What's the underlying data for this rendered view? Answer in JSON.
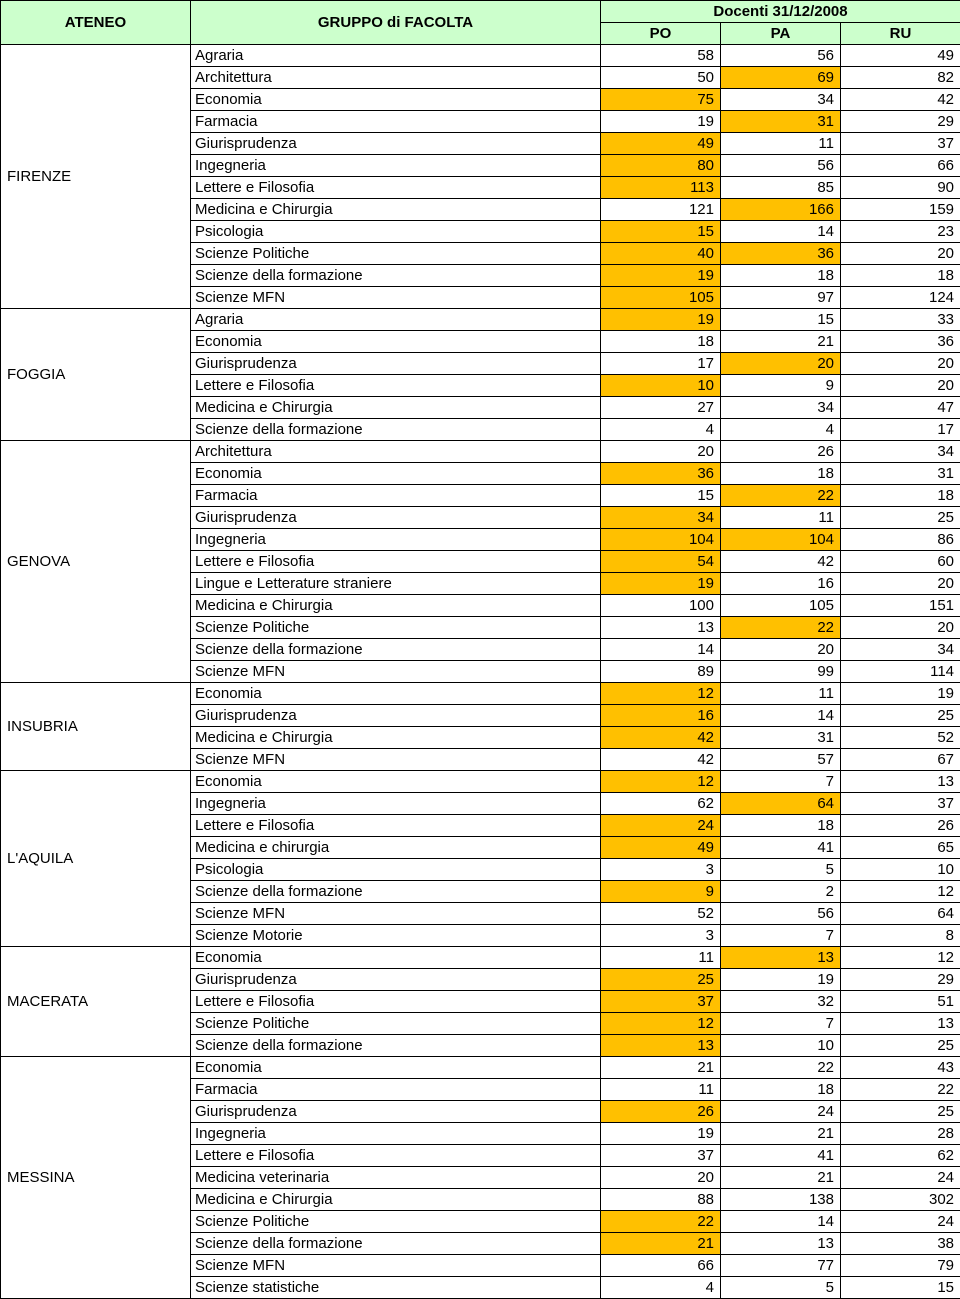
{
  "colors": {
    "header_bg": "#ccffcc",
    "highlight_bg": "#ffc000",
    "border": "#000000",
    "text": "#000000"
  },
  "header": {
    "ateneo": "ATENEO",
    "gruppo": "GRUPPO di FACOLTA",
    "docenti": "Docenti 31/12/2008",
    "po": "PO",
    "pa": "PA",
    "ru": "RU"
  },
  "groups": [
    {
      "ateneo": "FIRENZE",
      "rows": [
        {
          "fac": "Agraria",
          "po": 58,
          "pa": 56,
          "ru": 49,
          "hl": [
            false,
            false,
            false
          ]
        },
        {
          "fac": "Architettura",
          "po": 50,
          "pa": 69,
          "ru": 82,
          "hl": [
            false,
            true,
            false
          ]
        },
        {
          "fac": "Economia",
          "po": 75,
          "pa": 34,
          "ru": 42,
          "hl": [
            true,
            false,
            false
          ]
        },
        {
          "fac": "Farmacia",
          "po": 19,
          "pa": 31,
          "ru": 29,
          "hl": [
            false,
            true,
            false
          ]
        },
        {
          "fac": "Giurisprudenza",
          "po": 49,
          "pa": 11,
          "ru": 37,
          "hl": [
            true,
            false,
            false
          ]
        },
        {
          "fac": "Ingegneria",
          "po": 80,
          "pa": 56,
          "ru": 66,
          "hl": [
            true,
            false,
            false
          ]
        },
        {
          "fac": "Lettere e Filosofia",
          "po": 113,
          "pa": 85,
          "ru": 90,
          "hl": [
            true,
            false,
            false
          ]
        },
        {
          "fac": "Medicina e Chirurgia",
          "po": 121,
          "pa": 166,
          "ru": 159,
          "hl": [
            false,
            true,
            false
          ]
        },
        {
          "fac": "Psicologia",
          "po": 15,
          "pa": 14,
          "ru": 23,
          "hl": [
            true,
            false,
            false
          ]
        },
        {
          "fac": "Scienze Politiche",
          "po": 40,
          "pa": 36,
          "ru": 20,
          "hl": [
            true,
            true,
            false
          ]
        },
        {
          "fac": "Scienze della formazione",
          "po": 19,
          "pa": 18,
          "ru": 18,
          "hl": [
            true,
            false,
            false
          ]
        },
        {
          "fac": "Scienze MFN",
          "po": 105,
          "pa": 97,
          "ru": 124,
          "hl": [
            true,
            false,
            false
          ]
        }
      ]
    },
    {
      "ateneo": "FOGGIA",
      "rows": [
        {
          "fac": "Agraria",
          "po": 19,
          "pa": 15,
          "ru": 33,
          "hl": [
            true,
            false,
            false
          ]
        },
        {
          "fac": "Economia",
          "po": 18,
          "pa": 21,
          "ru": 36,
          "hl": [
            false,
            false,
            false
          ]
        },
        {
          "fac": "Giurisprudenza",
          "po": 17,
          "pa": 20,
          "ru": 20,
          "hl": [
            false,
            true,
            false
          ]
        },
        {
          "fac": "Lettere e Filosofia",
          "po": 10,
          "pa": 9,
          "ru": 20,
          "hl": [
            true,
            false,
            false
          ]
        },
        {
          "fac": "Medicina e Chirurgia",
          "po": 27,
          "pa": 34,
          "ru": 47,
          "hl": [
            false,
            false,
            false
          ]
        },
        {
          "fac": "Scienze della formazione",
          "po": 4,
          "pa": 4,
          "ru": 17,
          "hl": [
            false,
            false,
            false
          ]
        }
      ]
    },
    {
      "ateneo": "GENOVA",
      "rows": [
        {
          "fac": "Architettura",
          "po": 20,
          "pa": 26,
          "ru": 34,
          "hl": [
            false,
            false,
            false
          ]
        },
        {
          "fac": "Economia",
          "po": 36,
          "pa": 18,
          "ru": 31,
          "hl": [
            true,
            false,
            false
          ]
        },
        {
          "fac": "Farmacia",
          "po": 15,
          "pa": 22,
          "ru": 18,
          "hl": [
            false,
            true,
            false
          ]
        },
        {
          "fac": "Giurisprudenza",
          "po": 34,
          "pa": 11,
          "ru": 25,
          "hl": [
            true,
            false,
            false
          ]
        },
        {
          "fac": "Ingegneria",
          "po": 104,
          "pa": 104,
          "ru": 86,
          "hl": [
            true,
            true,
            false
          ]
        },
        {
          "fac": "Lettere e Filosofia",
          "po": 54,
          "pa": 42,
          "ru": 60,
          "hl": [
            true,
            false,
            false
          ]
        },
        {
          "fac": "Lingue e Letterature straniere",
          "po": 19,
          "pa": 16,
          "ru": 20,
          "hl": [
            true,
            false,
            false
          ]
        },
        {
          "fac": "Medicina e Chirurgia",
          "po": 100,
          "pa": 105,
          "ru": 151,
          "hl": [
            false,
            false,
            false
          ]
        },
        {
          "fac": "Scienze Politiche",
          "po": 13,
          "pa": 22,
          "ru": 20,
          "hl": [
            false,
            true,
            false
          ]
        },
        {
          "fac": "Scienze della formazione",
          "po": 14,
          "pa": 20,
          "ru": 34,
          "hl": [
            false,
            false,
            false
          ]
        },
        {
          "fac": "Scienze MFN",
          "po": 89,
          "pa": 99,
          "ru": 114,
          "hl": [
            false,
            false,
            false
          ]
        }
      ]
    },
    {
      "ateneo": "INSUBRIA",
      "rows": [
        {
          "fac": "Economia",
          "po": 12,
          "pa": 11,
          "ru": 19,
          "hl": [
            true,
            false,
            false
          ]
        },
        {
          "fac": "Giurisprudenza",
          "po": 16,
          "pa": 14,
          "ru": 25,
          "hl": [
            true,
            false,
            false
          ]
        },
        {
          "fac": "Medicina e Chirurgia",
          "po": 42,
          "pa": 31,
          "ru": 52,
          "hl": [
            true,
            false,
            false
          ]
        },
        {
          "fac": "Scienze MFN",
          "po": 42,
          "pa": 57,
          "ru": 67,
          "hl": [
            false,
            false,
            false
          ]
        }
      ]
    },
    {
      "ateneo": "L'AQUILA",
      "rows": [
        {
          "fac": "Economia",
          "po": 12,
          "pa": 7,
          "ru": 13,
          "hl": [
            true,
            false,
            false
          ]
        },
        {
          "fac": "Ingegneria",
          "po": 62,
          "pa": 64,
          "ru": 37,
          "hl": [
            false,
            true,
            false
          ]
        },
        {
          "fac": "Lettere e Filosofia",
          "po": 24,
          "pa": 18,
          "ru": 26,
          "hl": [
            true,
            false,
            false
          ]
        },
        {
          "fac": "Medicina e chirurgia",
          "po": 49,
          "pa": 41,
          "ru": 65,
          "hl": [
            true,
            false,
            false
          ]
        },
        {
          "fac": "Psicologia",
          "po": 3,
          "pa": 5,
          "ru": 10,
          "hl": [
            false,
            false,
            false
          ]
        },
        {
          "fac": "Scienze della formazione",
          "po": 9,
          "pa": 2,
          "ru": 12,
          "hl": [
            true,
            false,
            false
          ]
        },
        {
          "fac": "Scienze MFN",
          "po": 52,
          "pa": 56,
          "ru": 64,
          "hl": [
            false,
            false,
            false
          ]
        },
        {
          "fac": "Scienze Motorie",
          "po": 3,
          "pa": 7,
          "ru": 8,
          "hl": [
            false,
            false,
            false
          ]
        }
      ]
    },
    {
      "ateneo": "MACERATA",
      "rows": [
        {
          "fac": "Economia",
          "po": 11,
          "pa": 13,
          "ru": 12,
          "hl": [
            false,
            true,
            false
          ]
        },
        {
          "fac": "Giurisprudenza",
          "po": 25,
          "pa": 19,
          "ru": 29,
          "hl": [
            true,
            false,
            false
          ]
        },
        {
          "fac": "Lettere e Filosofia",
          "po": 37,
          "pa": 32,
          "ru": 51,
          "hl": [
            true,
            false,
            false
          ]
        },
        {
          "fac": "Scienze Politiche",
          "po": 12,
          "pa": 7,
          "ru": 13,
          "hl": [
            true,
            false,
            false
          ]
        },
        {
          "fac": "Scienze della formazione",
          "po": 13,
          "pa": 10,
          "ru": 25,
          "hl": [
            true,
            false,
            false
          ]
        }
      ]
    },
    {
      "ateneo": "MESSINA",
      "rows": [
        {
          "fac": "Economia",
          "po": 21,
          "pa": 22,
          "ru": 43,
          "hl": [
            false,
            false,
            false
          ]
        },
        {
          "fac": "Farmacia",
          "po": 11,
          "pa": 18,
          "ru": 22,
          "hl": [
            false,
            false,
            false
          ]
        },
        {
          "fac": "Giurisprudenza",
          "po": 26,
          "pa": 24,
          "ru": 25,
          "hl": [
            true,
            false,
            false
          ]
        },
        {
          "fac": "Ingegneria",
          "po": 19,
          "pa": 21,
          "ru": 28,
          "hl": [
            false,
            false,
            false
          ]
        },
        {
          "fac": "Lettere e Filosofia",
          "po": 37,
          "pa": 41,
          "ru": 62,
          "hl": [
            false,
            false,
            false
          ]
        },
        {
          "fac": "Medicina veterinaria",
          "po": 20,
          "pa": 21,
          "ru": 24,
          "hl": [
            false,
            false,
            false
          ]
        },
        {
          "fac": "Medicina e Chirurgia",
          "po": 88,
          "pa": 138,
          "ru": 302,
          "hl": [
            false,
            false,
            false
          ]
        },
        {
          "fac": "Scienze Politiche",
          "po": 22,
          "pa": 14,
          "ru": 24,
          "hl": [
            true,
            false,
            false
          ]
        },
        {
          "fac": "Scienze della formazione",
          "po": 21,
          "pa": 13,
          "ru": 38,
          "hl": [
            true,
            false,
            false
          ]
        },
        {
          "fac": "Scienze MFN",
          "po": 66,
          "pa": 77,
          "ru": 79,
          "hl": [
            false,
            false,
            false
          ]
        },
        {
          "fac": "Scienze statistiche",
          "po": 4,
          "pa": 5,
          "ru": 15,
          "hl": [
            false,
            false,
            false
          ]
        }
      ]
    }
  ]
}
